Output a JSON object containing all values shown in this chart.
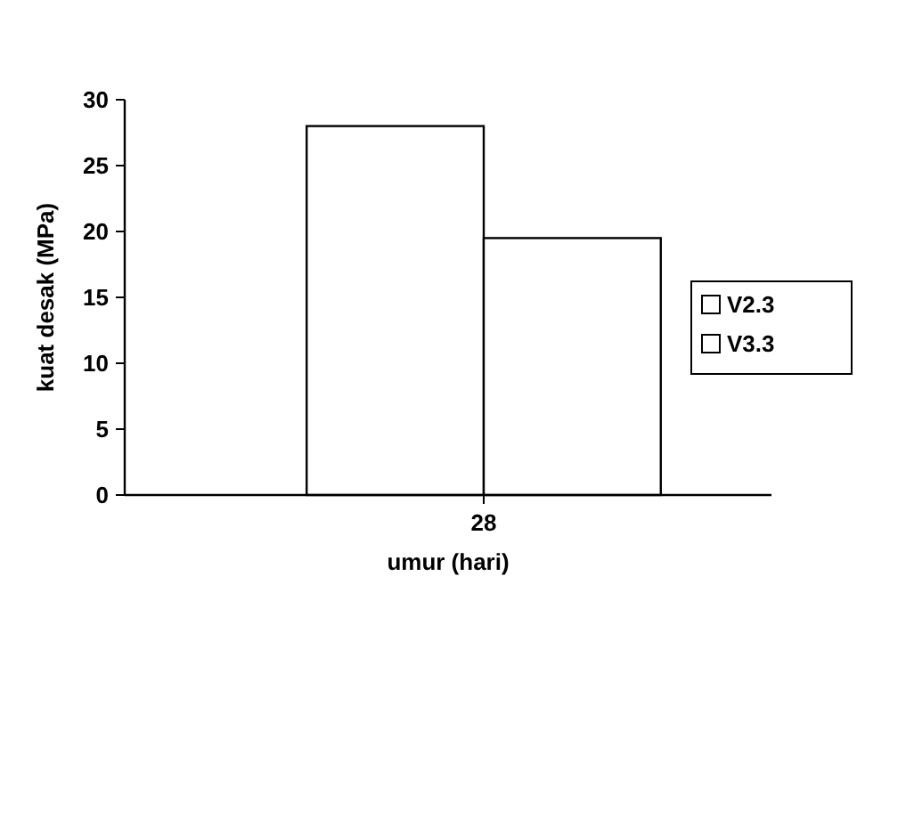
{
  "chart_data": {
    "type": "bar",
    "xlabel": "umur (hari)",
    "ylabel": "kuat desak (MPa)",
    "categories": [
      "28"
    ],
    "series": [
      {
        "name": "V2.3",
        "color": "#ffffff",
        "values": [
          28
        ]
      },
      {
        "name": "V3.3",
        "color": "#ffffff",
        "values": [
          19.5
        ]
      }
    ],
    "ylim": [
      0,
      30
    ],
    "yticks": [
      0,
      5,
      10,
      15,
      20,
      25,
      30
    ],
    "legend": "right"
  }
}
